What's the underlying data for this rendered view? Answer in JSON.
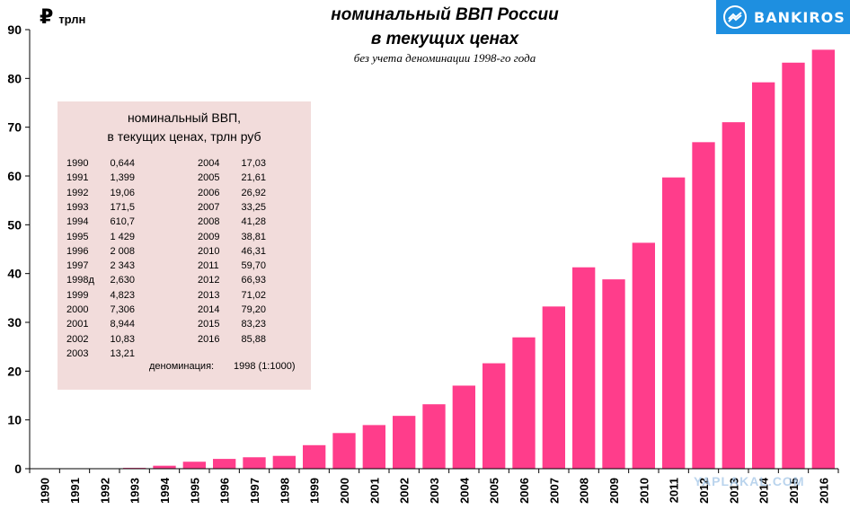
{
  "header": {
    "title_line1": "номинальный  ВВП России",
    "title_line2": "в текущих ценах",
    "subtitle": "без учета деноминации 1998-го года",
    "unit_symbol": "₽",
    "unit_text": "трлн"
  },
  "logo": {
    "text": "BANKIROS",
    "color": "#1e8fe0"
  },
  "watermark": {
    "text": "YAPLAKAL.COM"
  },
  "table": {
    "title_line1": "номинальный ВВП,",
    "title_line2": "в текущих ценах, трлн руб",
    "left": [
      {
        "year": "1990",
        "value": "0,644"
      },
      {
        "year": "1991",
        "value": "1,399"
      },
      {
        "year": "1992",
        "value": "19,06"
      },
      {
        "year": "1993",
        "value": "171,5"
      },
      {
        "year": "1994",
        "value": "610,7"
      },
      {
        "year": "1995",
        "value": "1 429"
      },
      {
        "year": "1996",
        "value": "2 008"
      },
      {
        "year": "1997",
        "value": "2 343"
      },
      {
        "year": "1998д",
        "value": "2,630"
      },
      {
        "year": "1999",
        "value": "4,823"
      },
      {
        "year": "2000",
        "value": "7,306"
      },
      {
        "year": "2001",
        "value": "8,944"
      },
      {
        "year": "2002",
        "value": "10,83"
      },
      {
        "year": "2003",
        "value": "13,21"
      }
    ],
    "right": [
      {
        "year": "2004",
        "value": "17,03"
      },
      {
        "year": "2005",
        "value": "21,61"
      },
      {
        "year": "2006",
        "value": "26,92"
      },
      {
        "year": "2007",
        "value": "33,25"
      },
      {
        "year": "2008",
        "value": "41,28"
      },
      {
        "year": "2009",
        "value": "38,81"
      },
      {
        "year": "2010",
        "value": "46,31"
      },
      {
        "year": "2011",
        "value": "59,70"
      },
      {
        "year": "2012",
        "value": "66,93"
      },
      {
        "year": "2013",
        "value": "71,02"
      },
      {
        "year": "2014",
        "value": "79,20"
      },
      {
        "year": "2015",
        "value": "83,23"
      },
      {
        "year": "2016",
        "value": "85,88"
      }
    ],
    "denomination_label": "деноминация:",
    "denomination_value": "1998 (1:1000)"
  },
  "chart_data": {
    "type": "bar",
    "categories": [
      "1990",
      "1991",
      "1992",
      "1993",
      "1994",
      "1995",
      "1996",
      "1997",
      "1998",
      "1999",
      "2000",
      "2001",
      "2002",
      "2003",
      "2004",
      "2005",
      "2006",
      "2007",
      "2008",
      "2009",
      "2010",
      "2011",
      "2012",
      "2013",
      "2014",
      "2015",
      "2016"
    ],
    "values": [
      0.000644,
      0.001399,
      0.01906,
      0.1715,
      0.6107,
      1.429,
      2.008,
      2.343,
      2.63,
      4.823,
      7.306,
      8.944,
      10.83,
      13.21,
      17.03,
      21.61,
      26.92,
      33.25,
      41.28,
      38.81,
      46.31,
      59.7,
      66.93,
      71.02,
      79.2,
      83.23,
      85.88
    ],
    "ylim": [
      0,
      90
    ],
    "yticks": [
      0,
      10,
      20,
      30,
      40,
      50,
      60,
      70,
      80,
      90
    ],
    "bar_color": "#ff3d8b",
    "grid": false,
    "legend": "none"
  }
}
